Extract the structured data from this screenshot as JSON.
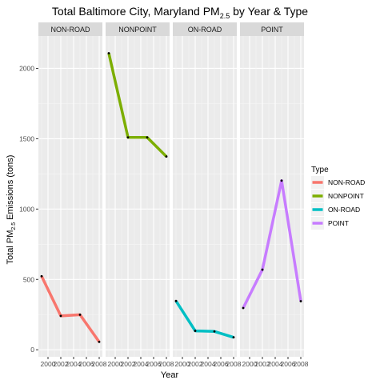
{
  "chart_data": {
    "type": "line",
    "title": {
      "main": "Total Baltimore City, Maryland  PM",
      "subscript": "2.5",
      "suffix": "  by Year & Type"
    },
    "xlabel": "Year",
    "ylabel": {
      "prefix": "Total PM",
      "subscript": "2.5",
      "suffix": " Emissions (tons)"
    },
    "x": [
      1999,
      2002,
      2005,
      2008
    ],
    "x_ticks": [
      2000,
      2002,
      2004,
      2006,
      2008
    ],
    "x_tick_labels": [
      "2000",
      "2002",
      "2004",
      "2006",
      "2008"
    ],
    "xlim": [
      1998.5,
      2008.5
    ],
    "ylim": [
      -50,
      2230
    ],
    "y_ticks": [
      0,
      500,
      1000,
      1500,
      2000
    ],
    "y_tick_labels": [
      "0",
      "500",
      "1000",
      "1500",
      "2000"
    ],
    "grid": true,
    "legend": {
      "title": "Type",
      "position": "right"
    },
    "series": [
      {
        "name": "NON-ROAD",
        "color": "#F8766D",
        "values": [
          522.94,
          240.85,
          248.93,
          55.82
        ]
      },
      {
        "name": "NONPOINT",
        "color": "#7CAE00",
        "values": [
          2107.63,
          1509.5,
          1509.5,
          1373.21
        ]
      },
      {
        "name": "ON-ROAD",
        "color": "#00BFC4",
        "values": [
          346.82,
          134.31,
          130.43,
          88.28
        ]
      },
      {
        "name": "POINT",
        "color": "#C77CFF",
        "values": [
          296.8,
          569.26,
          1202.49,
          344.98
        ]
      }
    ]
  }
}
